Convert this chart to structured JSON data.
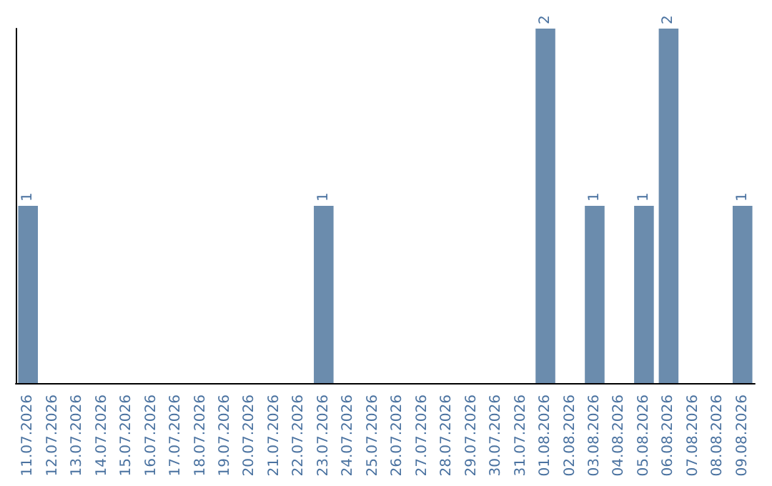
{
  "chart_data": {
    "type": "bar",
    "categories": [
      "11.07.2026",
      "12.07.2026",
      "13.07.2026",
      "14.07.2026",
      "15.07.2026",
      "16.07.2026",
      "17.07.2026",
      "18.07.2026",
      "19.07.2026",
      "20.07.2026",
      "21.07.2026",
      "22.07.2026",
      "23.07.2026",
      "24.07.2026",
      "25.07.2026",
      "26.07.2026",
      "27.07.2026",
      "28.07.2026",
      "29.07.2026",
      "30.07.2026",
      "31.07.2026",
      "01.08.2026",
      "02.08.2026",
      "03.08.2026",
      "04.08.2026",
      "05.08.2026",
      "06.08.2026",
      "07.08.2026",
      "08.08.2026",
      "09.08.2026"
    ],
    "values": [
      1,
      0,
      0,
      0,
      0,
      0,
      0,
      0,
      0,
      0,
      0,
      0,
      1,
      0,
      0,
      0,
      0,
      0,
      0,
      0,
      0,
      2,
      0,
      1,
      0,
      1,
      2,
      0,
      0,
      1
    ],
    "value_labels": [
      "1",
      null,
      null,
      null,
      null,
      null,
      null,
      null,
      null,
      null,
      null,
      null,
      "1",
      null,
      null,
      null,
      null,
      null,
      null,
      null,
      null,
      "2",
      null,
      "1",
      null,
      "1",
      "2",
      null,
      null,
      "1"
    ],
    "color": "#6b8cad",
    "grid": false,
    "tick_labels": "x"
  }
}
